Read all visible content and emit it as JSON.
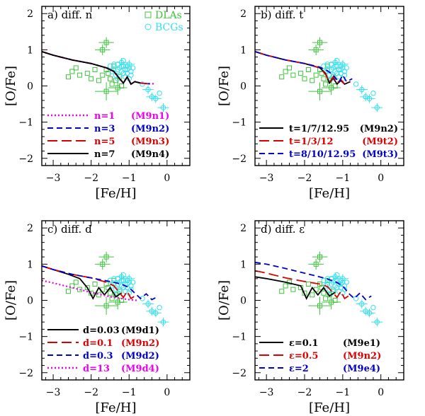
{
  "figure": {
    "description_free": true
  },
  "colors": {
    "dlas": "#3cc43c",
    "bcgs": "#33e0ee",
    "black": "#000000",
    "red": "#dd0000",
    "blue": "#0000cc",
    "magenta": "#ee00ee"
  },
  "chart_data": [
    {
      "type": "scatter",
      "panel_title": "a) diff. n",
      "xlabel": "[Fe/H]",
      "ylabel": "[O/Fe]",
      "xlim": [
        -3.3,
        0.6
      ],
      "ylim": [
        -2.2,
        2.2
      ],
      "xticks": [
        -3,
        -2,
        -1,
        0
      ],
      "yticks": [
        -2,
        -1,
        0,
        1,
        2
      ],
      "obs_legend": [
        {
          "label": "DLAs",
          "marker": "square",
          "color": "dlas"
        },
        {
          "label": "BCGs",
          "marker": "circle",
          "color": "bcgs"
        }
      ],
      "series": [
        {
          "name": "n=1",
          "model": "(M9n1)",
          "color": "magenta",
          "dash": "dotted",
          "points": [
            [
              -3.3,
              0.95
            ],
            [
              -3.0,
              0.85
            ],
            [
              -2.5,
              0.72
            ],
            [
              -2.0,
              0.62
            ],
            [
              -1.6,
              0.5
            ],
            [
              -1.4,
              0.4
            ],
            [
              -1.25,
              0.2
            ],
            [
              -1.15,
              0.08
            ],
            [
              -1.05,
              0.25
            ],
            [
              -0.95,
              0.05
            ],
            [
              -0.85,
              0.12
            ],
            [
              -0.7,
              0.08
            ],
            [
              -0.5,
              0.06
            ],
            [
              -0.35,
              0.06
            ]
          ]
        },
        {
          "name": "n=3",
          "model": "(M9n2)",
          "color": "blue",
          "dash": "dashed",
          "points": [
            [
              -3.3,
              0.95
            ],
            [
              -3.0,
              0.85
            ],
            [
              -2.5,
              0.72
            ],
            [
              -2.0,
              0.62
            ],
            [
              -1.6,
              0.5
            ],
            [
              -1.4,
              0.4
            ],
            [
              -1.25,
              0.2
            ],
            [
              -1.15,
              0.08
            ],
            [
              -1.05,
              0.25
            ],
            [
              -0.95,
              0.05
            ],
            [
              -0.85,
              0.12
            ],
            [
              -0.7,
              0.08
            ],
            [
              -0.5,
              0.06
            ],
            [
              -0.35,
              0.06
            ]
          ]
        },
        {
          "name": "n=5",
          "model": "(M9n3)",
          "color": "red",
          "dash": "longdash",
          "points": [
            [
              -3.3,
              0.95
            ],
            [
              -3.0,
              0.85
            ],
            [
              -2.5,
              0.72
            ],
            [
              -2.0,
              0.62
            ],
            [
              -1.6,
              0.5
            ],
            [
              -1.4,
              0.4
            ],
            [
              -1.25,
              0.2
            ],
            [
              -1.15,
              0.08
            ],
            [
              -1.05,
              0.25
            ],
            [
              -0.95,
              0.05
            ],
            [
              -0.85,
              0.12
            ],
            [
              -0.7,
              0.08
            ],
            [
              -0.5,
              0.06
            ]
          ]
        },
        {
          "name": "n=7",
          "model": "(M9n4)",
          "color": "black",
          "dash": "solid",
          "points": [
            [
              -3.3,
              0.95
            ],
            [
              -3.0,
              0.85
            ],
            [
              -2.5,
              0.72
            ],
            [
              -2.0,
              0.62
            ],
            [
              -1.6,
              0.5
            ],
            [
              -1.4,
              0.4
            ],
            [
              -1.25,
              0.2
            ],
            [
              -1.15,
              0.08
            ],
            [
              -1.05,
              0.25
            ],
            [
              -0.95,
              0.05
            ],
            [
              -0.85,
              0.12
            ],
            [
              -0.7,
              0.08
            ]
          ]
        }
      ]
    },
    {
      "type": "scatter",
      "panel_title": "b) diff. t",
      "xlabel": "[Fe/H]",
      "ylabel": "[O/Fe]",
      "xlim": [
        -3.3,
        0.6
      ],
      "ylim": [
        -2.2,
        2.2
      ],
      "xticks": [
        -3,
        -2,
        -1,
        0
      ],
      "yticks": [
        -2,
        -1,
        0,
        1,
        2
      ],
      "series": [
        {
          "name": "t=1/7/12.95",
          "model": "(M9n2)",
          "color": "black",
          "dash": "solid",
          "points": [
            [
              -3.3,
              0.95
            ],
            [
              -3.0,
              0.85
            ],
            [
              -2.5,
              0.72
            ],
            [
              -2.0,
              0.62
            ],
            [
              -1.6,
              0.5
            ],
            [
              -1.45,
              0.35
            ],
            [
              -1.35,
              0.08
            ],
            [
              -1.25,
              0.22
            ],
            [
              -1.15,
              0.05
            ],
            [
              -1.05,
              0.15
            ],
            [
              -0.95,
              0.05
            ],
            [
              -0.8,
              0.12
            ]
          ]
        },
        {
          "name": "t=1/3/12",
          "model": "(M9t2)",
          "color": "red",
          "dash": "longdash",
          "points": [
            [
              -3.3,
              0.95
            ],
            [
              -3.0,
              0.85
            ],
            [
              -2.5,
              0.72
            ],
            [
              -2.0,
              0.62
            ],
            [
              -1.6,
              0.5
            ],
            [
              -1.45,
              0.32
            ],
            [
              -1.35,
              0.1
            ],
            [
              -1.25,
              0.25
            ],
            [
              -1.15,
              0.08
            ],
            [
              -1.05,
              0.18
            ],
            [
              -0.95,
              0.05
            ],
            [
              -0.85,
              0.1
            ]
          ]
        },
        {
          "name": "t=8/10/12.95",
          "model": "(M9t3)",
          "color": "blue",
          "dash": "dashed",
          "points": [
            [
              -3.3,
              0.95
            ],
            [
              -3.0,
              0.85
            ],
            [
              -2.5,
              0.72
            ],
            [
              -2.0,
              0.62
            ],
            [
              -1.6,
              0.52
            ],
            [
              -1.4,
              0.42
            ],
            [
              -1.25,
              0.3
            ],
            [
              -1.1,
              0.1
            ],
            [
              -1.0,
              0.3
            ],
            [
              -0.9,
              0.12
            ],
            [
              -0.75,
              0.2
            ]
          ]
        }
      ]
    },
    {
      "type": "scatter",
      "panel_title": "c) diff. d",
      "xlabel": "[Fe/H]",
      "ylabel": "[O/Fe]",
      "xlim": [
        -3.3,
        0.6
      ],
      "ylim": [
        -2.2,
        2.2
      ],
      "xticks": [
        -3,
        -2,
        -1,
        0
      ],
      "yticks": [
        -2,
        -1,
        0,
        1,
        2
      ],
      "series": [
        {
          "name": "d=0.03",
          "model": "(M9d1)",
          "color": "black",
          "dash": "solid",
          "points": [
            [
              -3.3,
              0.95
            ],
            [
              -3.0,
              0.85
            ],
            [
              -2.6,
              0.72
            ],
            [
              -2.3,
              0.6
            ],
            [
              -2.1,
              0.35
            ],
            [
              -1.95,
              0.05
            ],
            [
              -1.8,
              0.35
            ],
            [
              -1.65,
              0.15
            ],
            [
              -1.5,
              0.35
            ],
            [
              -1.35,
              0.1
            ],
            [
              -1.2,
              0.2
            ]
          ]
        },
        {
          "name": "d=0.1",
          "model": "(M9n2)",
          "color": "red",
          "dash": "longdash",
          "points": [
            [
              -3.3,
              0.95
            ],
            [
              -3.0,
              0.85
            ],
            [
              -2.5,
              0.72
            ],
            [
              -2.0,
              0.62
            ],
            [
              -1.6,
              0.5
            ],
            [
              -1.4,
              0.4
            ],
            [
              -1.25,
              0.2
            ],
            [
              -1.15,
              0.08
            ],
            [
              -1.05,
              0.25
            ],
            [
              -0.95,
              0.05
            ],
            [
              -0.85,
              0.12
            ]
          ]
        },
        {
          "name": "d=0.3",
          "model": "(M9d2)",
          "color": "blue",
          "dash": "dashed",
          "points": [
            [
              -3.3,
              0.95
            ],
            [
              -3.0,
              0.85
            ],
            [
              -2.5,
              0.72
            ],
            [
              -2.0,
              0.62
            ],
            [
              -1.5,
              0.52
            ],
            [
              -1.2,
              0.45
            ],
            [
              -1.0,
              0.35
            ],
            [
              -0.85,
              0.2
            ],
            [
              -0.7,
              0.05
            ],
            [
              -0.55,
              0.18
            ],
            [
              -0.4,
              0.02
            ],
            [
              -0.25,
              0.1
            ]
          ]
        },
        {
          "name": "d=13",
          "model": "(M9d4)",
          "color": "magenta",
          "dash": "dotted",
          "points": [
            [
              -3.3,
              0.55
            ],
            [
              -3.0,
              0.48
            ],
            [
              -2.5,
              0.35
            ],
            [
              -2.0,
              0.22
            ],
            [
              -1.5,
              0.1
            ],
            [
              -1.2,
              0.05
            ],
            [
              -1.0,
              0.02
            ],
            [
              -0.8,
              0.0
            ]
          ]
        }
      ]
    },
    {
      "type": "scatter",
      "panel_title": "d) diff. ε",
      "xlabel": "[Fe/H]",
      "ylabel": "[O/Fe]",
      "xlim": [
        -3.3,
        0.6
      ],
      "ylim": [
        -2.2,
        2.2
      ],
      "xticks": [
        -3,
        -2,
        -1,
        0
      ],
      "yticks": [
        -2,
        -1,
        0,
        1,
        2
      ],
      "series": [
        {
          "name": "ε=0.1",
          "model": "(M9e1)",
          "color": "black",
          "dash": "solid",
          "points": [
            [
              -3.3,
              0.65
            ],
            [
              -3.0,
              0.6
            ],
            [
              -2.5,
              0.5
            ],
            [
              -2.1,
              0.4
            ],
            [
              -1.95,
              0.05
            ],
            [
              -1.8,
              0.35
            ],
            [
              -1.65,
              0.15
            ],
            [
              -1.5,
              0.35
            ],
            [
              -1.35,
              0.12
            ],
            [
              -1.2,
              0.22
            ]
          ]
        },
        {
          "name": "ε=0.5",
          "model": "(M9n2)",
          "color": "red",
          "dash": "longdash",
          "points": [
            [
              -3.3,
              0.82
            ],
            [
              -3.0,
              0.75
            ],
            [
              -2.5,
              0.62
            ],
            [
              -2.0,
              0.52
            ],
            [
              -1.6,
              0.45
            ],
            [
              -1.4,
              0.38
            ],
            [
              -1.25,
              0.2
            ],
            [
              -1.15,
              0.08
            ],
            [
              -1.05,
              0.25
            ],
            [
              -0.95,
              0.05
            ],
            [
              -0.85,
              0.12
            ]
          ]
        },
        {
          "name": "ε=2",
          "model": "(M9e4)",
          "color": "blue",
          "dash": "dashed",
          "points": [
            [
              -3.3,
              1.05
            ],
            [
              -3.0,
              1.0
            ],
            [
              -2.5,
              0.88
            ],
            [
              -2.0,
              0.75
            ],
            [
              -1.5,
              0.62
            ],
            [
              -1.2,
              0.52
            ],
            [
              -1.0,
              0.4
            ],
            [
              -0.85,
              0.2
            ],
            [
              -0.7,
              0.05
            ],
            [
              -0.55,
              0.2
            ],
            [
              -0.4,
              0.02
            ],
            [
              -0.25,
              0.12
            ]
          ]
        }
      ]
    }
  ],
  "observations": {
    "dlas": [
      [
        -2.5,
        0.4
      ],
      [
        -2.3,
        0.3
      ],
      [
        -2.1,
        0.35
      ],
      [
        -1.9,
        0.45
      ],
      [
        -1.7,
        0.3
      ],
      [
        -1.5,
        0.2
      ],
      [
        -1.45,
        0.05
      ],
      [
        -1.35,
        0.15
      ],
      [
        -1.25,
        0.25
      ],
      [
        -2.6,
        0.25
      ],
      [
        -2.4,
        0.5
      ],
      [
        -1.8,
        0.15
      ],
      [
        -1.6,
        0.45
      ],
      [
        -2.0,
        0.2
      ],
      [
        -1.55,
        0.35
      ],
      [
        -1.7,
        1.0
      ],
      [
        -1.6,
        1.2
      ],
      [
        -1.2,
        0.0
      ],
      [
        -1.4,
        0.55
      ],
      [
        -1.3,
        -0.05
      ],
      [
        -1.6,
        -0.15
      ]
    ],
    "dlas_err": [
      [
        -1.7,
        1.0,
        0.2,
        0.15
      ],
      [
        -1.6,
        1.2,
        0.2,
        0.15
      ],
      [
        -1.6,
        -0.15,
        0.3,
        0.25
      ],
      [
        -1.3,
        -0.05,
        0.25,
        0.2
      ]
    ],
    "bcgs": [
      [
        -1.5,
        0.55
      ],
      [
        -1.4,
        0.45
      ],
      [
        -1.3,
        0.6
      ],
      [
        -1.25,
        0.5
      ],
      [
        -1.2,
        0.4
      ],
      [
        -1.15,
        0.55
      ],
      [
        -1.1,
        0.45
      ],
      [
        -1.05,
        0.35
      ],
      [
        -1.0,
        0.5
      ],
      [
        -0.95,
        0.4
      ],
      [
        -1.35,
        0.3
      ],
      [
        -1.2,
        0.65
      ],
      [
        -1.1,
        0.25
      ],
      [
        -1.0,
        0.6
      ],
      [
        -1.3,
        0.45
      ],
      [
        -1.25,
        0.3
      ],
      [
        -1.4,
        0.6
      ],
      [
        -1.15,
        0.7
      ],
      [
        -1.05,
        0.55
      ],
      [
        -0.9,
        0.5
      ],
      [
        -1.45,
        0.4
      ],
      [
        -1.15,
        0.35
      ],
      [
        -1.0,
        0.2
      ],
      [
        -1.3,
        0.2
      ],
      [
        -1.2,
        0.55
      ],
      [
        -1.05,
        0.45
      ],
      [
        -0.95,
        0.3
      ],
      [
        -0.5,
        -0.1
      ],
      [
        -0.4,
        -0.3
      ],
      [
        -0.3,
        -0.35
      ],
      [
        -0.2,
        -0.2
      ],
      [
        -0.65,
        0.05
      ],
      [
        -0.1,
        -0.6
      ]
    ],
    "bcgs_err": [
      [
        -0.4,
        -0.3,
        0.15,
        0.12
      ],
      [
        -0.3,
        -0.35,
        0.15,
        0.12
      ],
      [
        -0.1,
        -0.6,
        0.15,
        0.12
      ],
      [
        -0.5,
        -0.1,
        0.15,
        0.12
      ],
      [
        -1.2,
        0.65,
        0.15,
        0.12
      ],
      [
        -1.0,
        0.6,
        0.15,
        0.12
      ]
    ]
  }
}
